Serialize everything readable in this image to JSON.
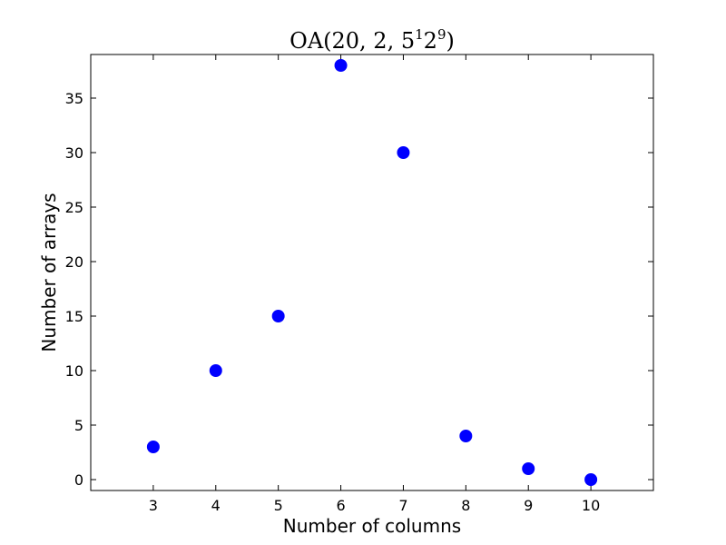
{
  "chart_data": {
    "type": "scatter",
    "title": "OA(20, 2, 5",
    "title_sup1": "1",
    "title_mid": "2",
    "title_sup2": "9",
    "title_end": ")",
    "xlabel": "Number of columns",
    "ylabel": "Number of arrays",
    "xlim": [
      2,
      11
    ],
    "ylim": [
      -1,
      39
    ],
    "xticks": [
      3,
      4,
      5,
      6,
      7,
      8,
      9,
      10
    ],
    "yticks": [
      0,
      5,
      10,
      15,
      20,
      25,
      30,
      35
    ],
    "grid": false,
    "marker_color": "#0000ff",
    "x": [
      3,
      4,
      5,
      6,
      7,
      8,
      9,
      10
    ],
    "y": [
      3,
      10,
      15,
      38,
      30,
      4,
      1,
      0
    ]
  }
}
